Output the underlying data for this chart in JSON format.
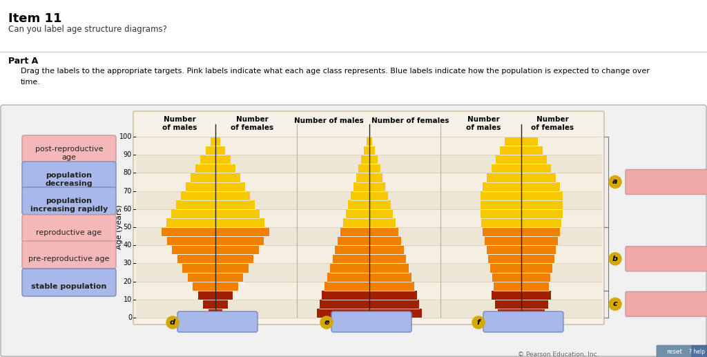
{
  "title": "Item 11",
  "subtitle": "Can you label age structure diagrams?",
  "part": "Part A",
  "instruction1": "Drag the labels to the appropriate targets. Pink labels indicate what each age class represents. Blue labels indicate how the population is expected to change over",
  "instruction2": "time.",
  "bg_page": "#e8e8e8",
  "bg_white": "#ffffff",
  "bg_content": "#f0f0f0",
  "bg_chart_area": "#f5f0e8",
  "stripe1": "#ede5d5",
  "stripe2": "#f5efe3",
  "color_post": "#f5c800",
  "color_repro": "#f08000",
  "color_pre": "#a02000",
  "color_divider": "#222222",
  "color_bracket": "#666666",
  "color_circle": "#d4a800",
  "color_pink_btn": "#f5b8b8",
  "color_pink_box": "#f0a8a8",
  "color_blue_btn": "#a8b8e8",
  "color_blue_box": "#a8b8e8",
  "color_blue_border": "#7888bb",
  "color_pink_border": "#cc9999",
  "left_labels": [
    {
      "text": "post-reproductive\nage",
      "bold": false,
      "type": "pink"
    },
    {
      "text": "population\ndecreasing",
      "bold": true,
      "type": "blue"
    },
    {
      "text": "population\nincreasing rapidly",
      "bold": true,
      "type": "blue"
    },
    {
      "text": "reproductive age",
      "bold": false,
      "type": "pink"
    },
    {
      "text": "pre-reproductive age",
      "bold": false,
      "type": "pink"
    },
    {
      "text": "stable population",
      "bold": true,
      "type": "blue"
    }
  ],
  "age_ticks": [
    0,
    10,
    20,
    30,
    40,
    50,
    60,
    70,
    80,
    90,
    100
  ],
  "copyright": "© Pearson Education, Inc.",
  "reset_color": "#7090a8",
  "help_color": "#5070a0"
}
